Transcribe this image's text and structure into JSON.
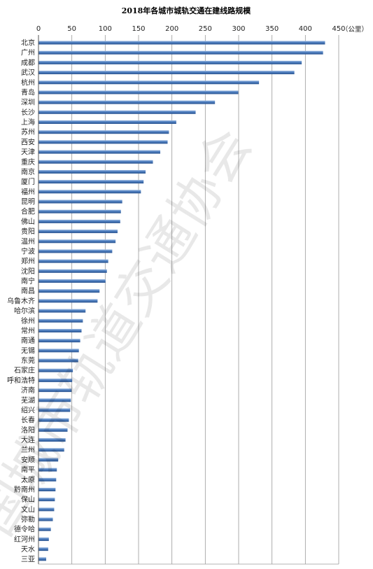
{
  "chart_data": {
    "type": "bar",
    "orientation": "horizontal",
    "title": "2018年各城市城轨交通在建线路规模",
    "unit_label": "（公里）",
    "xlim": [
      0,
      450
    ],
    "xticks": [
      "0",
      "50",
      "100",
      "150",
      "200",
      "250",
      "300",
      "350",
      "400",
      "450"
    ],
    "grid": true,
    "bar_color": "#4a7bbd",
    "categories": [
      "北京",
      "广州",
      "成都",
      "武汉",
      "杭州",
      "青岛",
      "深圳",
      "长沙",
      "上海",
      "苏州",
      "西安",
      "天津",
      "重庆",
      "南京",
      "厦门",
      "福州",
      "昆明",
      "合肥",
      "佛山",
      "贵阳",
      "温州",
      "宁波",
      "郑州",
      "沈阳",
      "南宁",
      "南昌",
      "乌鲁木齐",
      "哈尔滨",
      "徐州",
      "常州",
      "南通",
      "无锡",
      "东莞",
      "石家庄",
      "呼和浩特",
      "济南",
      "芜湖",
      "绍兴",
      "长春",
      "洛阳",
      "大连",
      "兰州",
      "安顺",
      "南平",
      "太原",
      "黔南州",
      "保山",
      "文山",
      "弥勒",
      "德令哈",
      "红河州",
      "天水",
      "三亚"
    ],
    "values": [
      429,
      426,
      394,
      383,
      330,
      299,
      264,
      235,
      206,
      195,
      193,
      182,
      171,
      160,
      157,
      153,
      125,
      123,
      122,
      118,
      115,
      110,
      104,
      102,
      100,
      91,
      88,
      70,
      66,
      64,
      62,
      60,
      59,
      51,
      50,
      49,
      48,
      47,
      45,
      43,
      40,
      38,
      29,
      27,
      26,
      25,
      24,
      23,
      21,
      18,
      15,
      14,
      11
    ]
  },
  "watermark": "国城市轨道交通协会"
}
